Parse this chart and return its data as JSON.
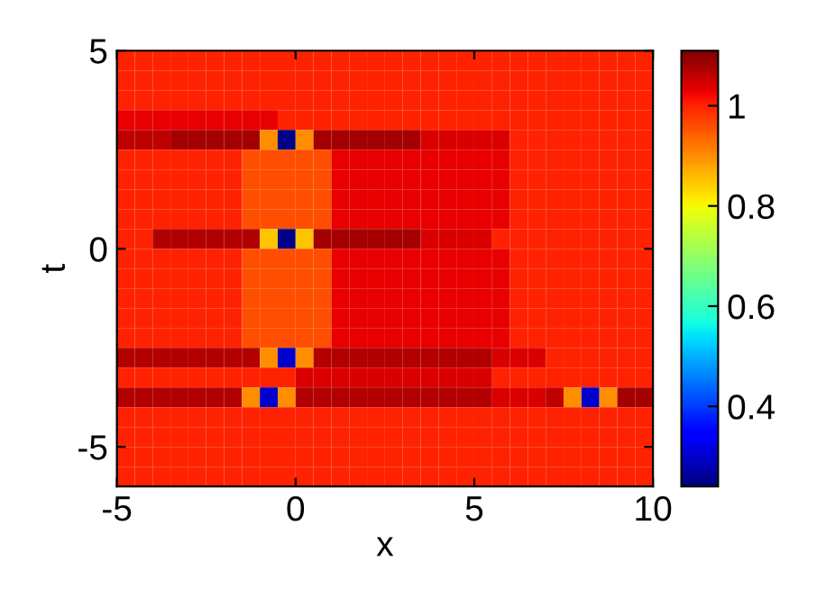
{
  "chart_data": {
    "type": "heatmap",
    "xlabel": "x",
    "ylabel": "t",
    "xlim": [
      -5,
      10
    ],
    "ylim": [
      -6,
      5
    ],
    "xticks": [
      -5,
      0,
      5,
      10
    ],
    "yticks": [
      -5,
      0,
      5
    ],
    "clim": [
      0.24,
      1.11
    ],
    "cticks": [
      {
        "value": 0.4,
        "label": "0.4"
      },
      {
        "value": 0.6,
        "label": "0.6"
      },
      {
        "value": 0.8,
        "label": "0.8"
      },
      {
        "value": 1,
        "label": "1"
      }
    ],
    "x": [
      -4.75,
      -4.25,
      -3.75,
      -3.25,
      -2.75,
      -2.25,
      -1.75,
      -1.25,
      -0.75,
      -0.25,
      0.25,
      0.75,
      1.25,
      1.75,
      2.25,
      2.75,
      3.25,
      3.75,
      4.25,
      4.75,
      5.25,
      5.75,
      6.25,
      6.75,
      7.25,
      7.75,
      8.25,
      8.75,
      9.25,
      9.75
    ],
    "y": [
      4.75,
      4.25,
      3.75,
      3.25,
      2.75,
      2.25,
      1.75,
      1.25,
      0.75,
      0.25,
      -0.25,
      -0.75,
      -1.25,
      -1.75,
      -2.25,
      -2.75,
      -3.25,
      -3.75,
      -4.25,
      -4.75,
      -5.25,
      -5.75
    ],
    "cells": [
      [
        1,
        1,
        1,
        1,
        1,
        1,
        1,
        1,
        1,
        1,
        1,
        1,
        1,
        1,
        1,
        1,
        1,
        1,
        1,
        1,
        1,
        1,
        1,
        1,
        1,
        1,
        1,
        1,
        1,
        1
      ],
      [
        1,
        1,
        1,
        1,
        1,
        1,
        1,
        1,
        1,
        1,
        1,
        1,
        1,
        1,
        1,
        1,
        1,
        1,
        1,
        1,
        1,
        1,
        1,
        1,
        1,
        1,
        1,
        1,
        1,
        1
      ],
      [
        1,
        1,
        1,
        1,
        1,
        1,
        1,
        1,
        1,
        1,
        1,
        1,
        1,
        1,
        1,
        1,
        1,
        1,
        1,
        1,
        1,
        1,
        1,
        1,
        1,
        1,
        1,
        1,
        1,
        1
      ],
      [
        1.03,
        1.03,
        1.03,
        1.03,
        1.03,
        1.03,
        1.03,
        1.03,
        1.03,
        1,
        1,
        1,
        1,
        1,
        1,
        1,
        1,
        1,
        1,
        1,
        1,
        1,
        1,
        1,
        1,
        1,
        1,
        1,
        1,
        1
      ],
      [
        1.06,
        1.06,
        1.06,
        1.08,
        1.08,
        1.08,
        1.08,
        1.08,
        0.9,
        0.25,
        0.9,
        1.08,
        1.08,
        1.08,
        1.08,
        1.08,
        1.08,
        1.04,
        1.04,
        1.04,
        1.04,
        1.04,
        1,
        1,
        1,
        1,
        1,
        1,
        1,
        1
      ],
      [
        1,
        1,
        1,
        1,
        1,
        1,
        1,
        0.96,
        0.96,
        0.96,
        0.96,
        0.96,
        1.03,
        1.03,
        1.03,
        1.03,
        1.03,
        1.03,
        1.03,
        1.03,
        1.03,
        1.03,
        1,
        1,
        1,
        1,
        1,
        1,
        1,
        1
      ],
      [
        1,
        1,
        1,
        1,
        1,
        1,
        1,
        0.96,
        0.96,
        0.96,
        0.96,
        0.96,
        1.03,
        1.03,
        1.03,
        1.03,
        1.03,
        1.03,
        1.03,
        1.03,
        1.03,
        1.03,
        1,
        1,
        1,
        1,
        1,
        1,
        1,
        1
      ],
      [
        1,
        1,
        1,
        1,
        1,
        1,
        1,
        0.96,
        0.96,
        0.96,
        0.96,
        0.96,
        1.03,
        1.03,
        1.03,
        1.03,
        1.03,
        1.03,
        1.03,
        1.03,
        1.03,
        1.03,
        1,
        1,
        1,
        1,
        1,
        1,
        1,
        1
      ],
      [
        1,
        1,
        1,
        1,
        1,
        1,
        1,
        0.96,
        0.96,
        0.96,
        0.96,
        0.96,
        1.03,
        1.03,
        1.03,
        1.03,
        1.03,
        1.03,
        1.03,
        1.03,
        1.03,
        1.03,
        1,
        1,
        1,
        1,
        1,
        1,
        1,
        1
      ],
      [
        1,
        1,
        1.07,
        1.07,
        1.07,
        1.07,
        1.07,
        1.07,
        0.85,
        0.25,
        0.85,
        1.08,
        1.08,
        1.08,
        1.08,
        1.08,
        1.08,
        1.04,
        1.04,
        1.04,
        1.04,
        1,
        1,
        1,
        1,
        1,
        1,
        1,
        1,
        1
      ],
      [
        1,
        1,
        1,
        1,
        1,
        1,
        1,
        0.96,
        0.96,
        0.96,
        0.96,
        0.96,
        1.03,
        1.03,
        1.03,
        1.03,
        1.03,
        1.03,
        1.03,
        1.03,
        1.03,
        1.03,
        1,
        1,
        1,
        1,
        1,
        1,
        1,
        1
      ],
      [
        1,
        1,
        1,
        1,
        1,
        1,
        1,
        0.96,
        0.96,
        0.96,
        0.96,
        0.96,
        1.03,
        1.03,
        1.03,
        1.03,
        1.03,
        1.03,
        1.03,
        1.03,
        1.03,
        1.03,
        1,
        1,
        1,
        1,
        1,
        1,
        1,
        1
      ],
      [
        1,
        1,
        1,
        1,
        1,
        1,
        1,
        0.96,
        0.96,
        0.96,
        0.96,
        0.96,
        1.03,
        1.03,
        1.03,
        1.03,
        1.03,
        1.03,
        1.03,
        1.03,
        1.03,
        1.03,
        1,
        1,
        1,
        1,
        1,
        1,
        1,
        1
      ],
      [
        1,
        1,
        1,
        1,
        1,
        1,
        1,
        0.96,
        0.96,
        0.96,
        0.96,
        0.96,
        1.03,
        1.03,
        1.03,
        1.03,
        1.03,
        1.03,
        1.03,
        1.03,
        1.03,
        1.03,
        1,
        1,
        1,
        1,
        1,
        1,
        1,
        1
      ],
      [
        1,
        1,
        1,
        1,
        1,
        1,
        1,
        0.96,
        0.96,
        0.96,
        0.96,
        0.96,
        1.03,
        1.03,
        1.03,
        1.03,
        1.03,
        1.03,
        1.03,
        1.03,
        1.03,
        1.03,
        1,
        1,
        1,
        1,
        1,
        1,
        1,
        1
      ],
      [
        1.07,
        1.07,
        1.07,
        1.07,
        1.07,
        1.07,
        1.07,
        1.07,
        0.9,
        0.3,
        0.9,
        1.07,
        1.07,
        1.07,
        1.07,
        1.07,
        1.07,
        1.07,
        1.07,
        1.07,
        1.07,
        1.04,
        1.04,
        1.04,
        1,
        1,
        1,
        1,
        1,
        1
      ],
      [
        1,
        1,
        1,
        1,
        1,
        1,
        1,
        1,
        1,
        1,
        1.04,
        1.04,
        1.04,
        1.04,
        1.04,
        1.04,
        1.04,
        1.04,
        1.04,
        1.04,
        1.04,
        1,
        1,
        1,
        1,
        1,
        1,
        1,
        1,
        1
      ],
      [
        1.07,
        1.07,
        1.07,
        1.07,
        1.07,
        1.07,
        1.07,
        0.9,
        0.3,
        0.9,
        1.07,
        1.07,
        1.07,
        1.07,
        1.07,
        1.07,
        1.07,
        1.07,
        1.07,
        1.07,
        1.07,
        1.04,
        1.04,
        1.04,
        1.06,
        0.9,
        0.3,
        0.9,
        1.08,
        1.08
      ],
      [
        1,
        1,
        1,
        1,
        1,
        1,
        1,
        1,
        1,
        1,
        1,
        1,
        1,
        1,
        1,
        1,
        1,
        1,
        1,
        1,
        1,
        1,
        1,
        1,
        1,
        1,
        1,
        1,
        1,
        1
      ],
      [
        1,
        1,
        1,
        1,
        1,
        1,
        1,
        1,
        1,
        1,
        1,
        1,
        1,
        1,
        1,
        1,
        1,
        1,
        1,
        1,
        1,
        1,
        1,
        1,
        1,
        1,
        1,
        1,
        1,
        1
      ],
      [
        1,
        1,
        1,
        1,
        1,
        1,
        1,
        1,
        1,
        1,
        1,
        1,
        1,
        1,
        1,
        1,
        1,
        1,
        1,
        1,
        1,
        1,
        1,
        1,
        1,
        1,
        1,
        1,
        1,
        1
      ],
      [
        1,
        1,
        1,
        1,
        1,
        1,
        1,
        1,
        1,
        1,
        1,
        1,
        1,
        1,
        1,
        1,
        1,
        1,
        1,
        1,
        1,
        1,
        1,
        1,
        1,
        1,
        1,
        1,
        1,
        1
      ]
    ]
  }
}
